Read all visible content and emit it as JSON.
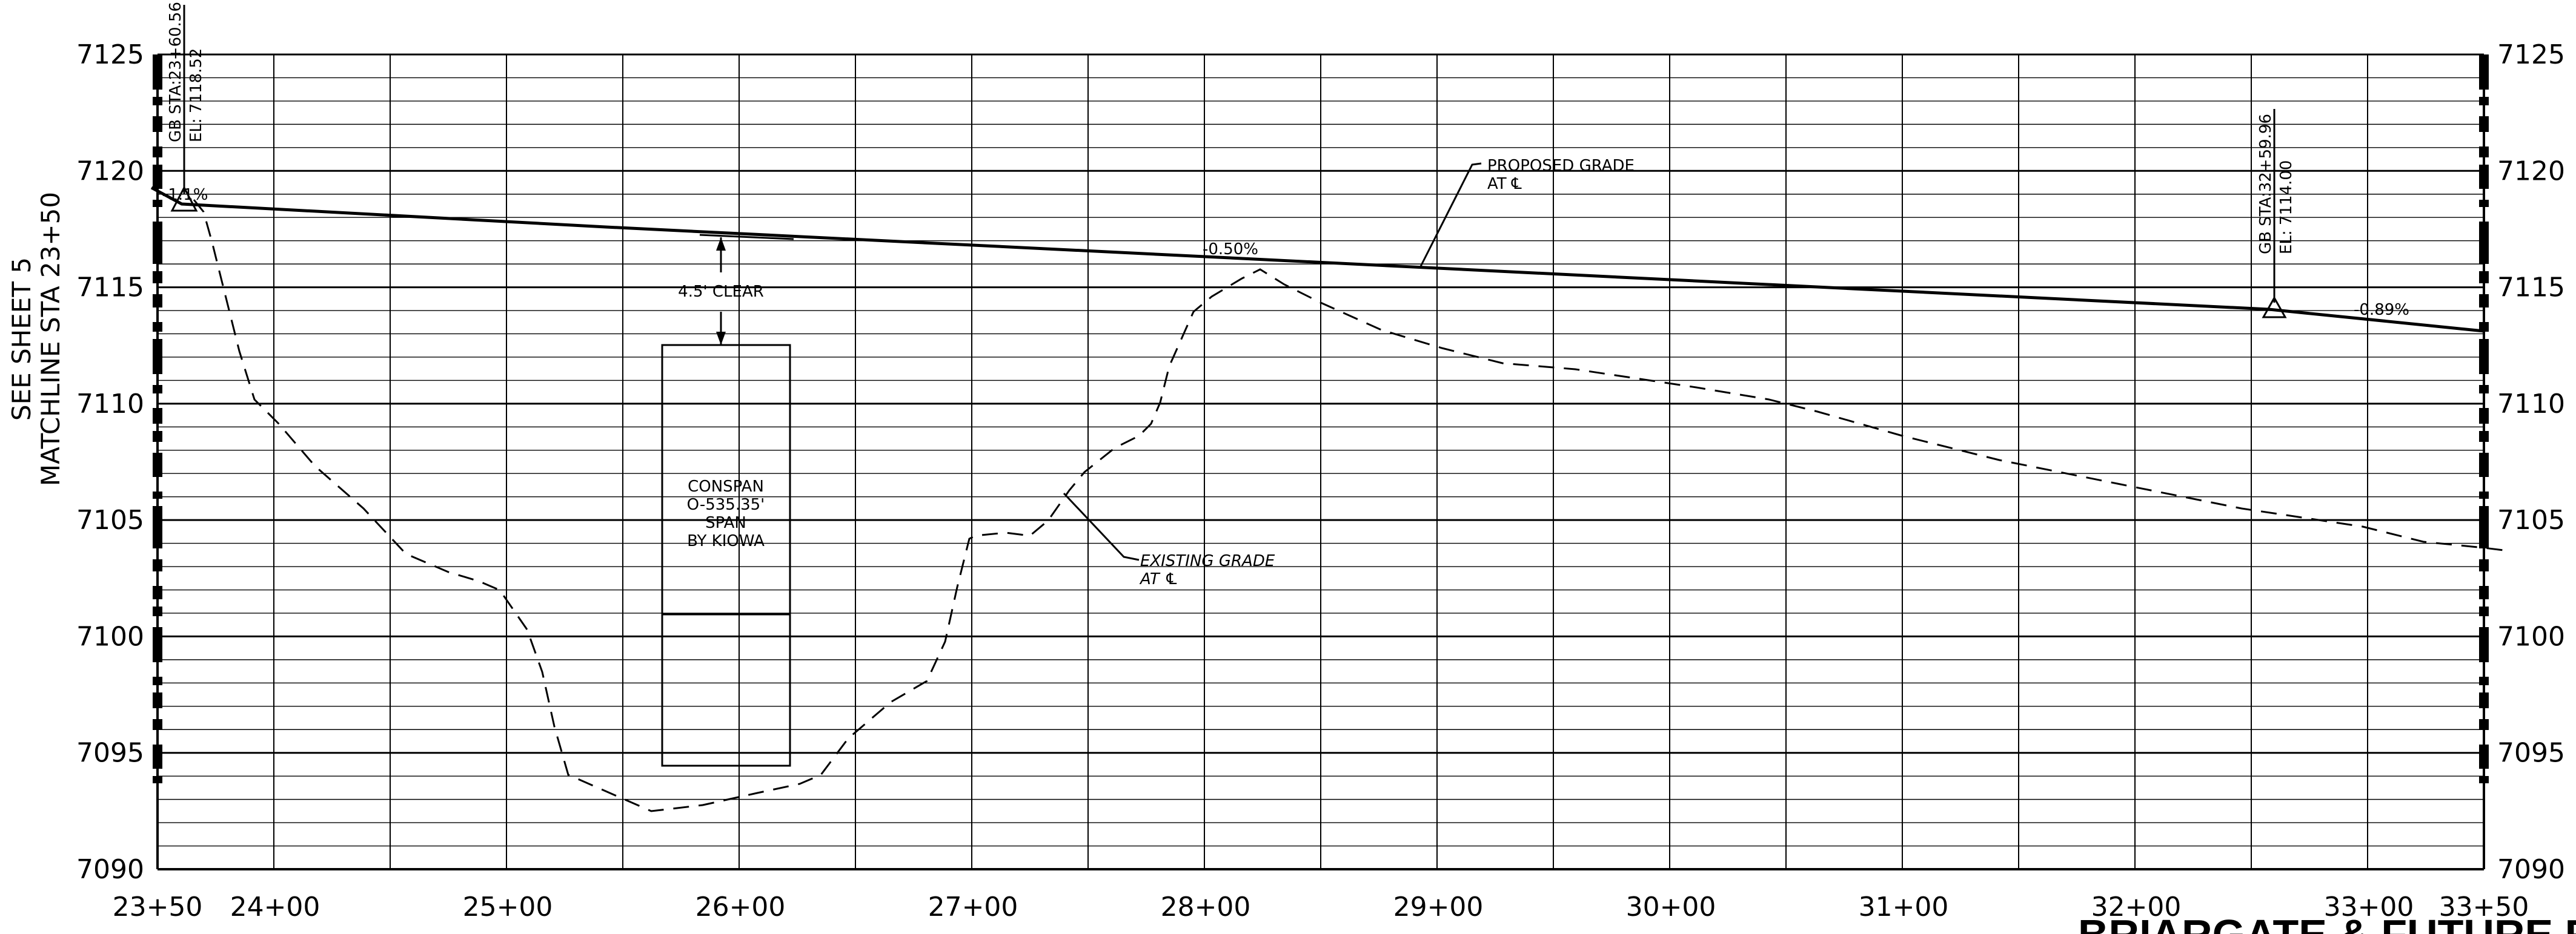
{
  "drawing": {
    "matchline_line1": "SEE SHEET 5",
    "matchline_line2": "MATCHLINE STA 23+50",
    "title_fragment": "BRIARGATE & FUTURE R"
  },
  "axes": {
    "x_ticks": [
      "23+50",
      "24+00",
      "25+00",
      "26+00",
      "27+00",
      "28+00",
      "29+00",
      "30+00",
      "31+00",
      "32+00",
      "33+00",
      "33+50"
    ],
    "y_ticks": [
      "7090",
      "7095",
      "7100",
      "7105",
      "7110",
      "7115",
      "7120",
      "7125"
    ]
  },
  "labels": {
    "gb_left_sta": "GB STA:23+60.56",
    "gb_left_el": "EL: 7118.52",
    "gb_right_sta": "GB STA:32+59.96",
    "gb_right_el": "EL: 7114.00",
    "grade_left": "-1.1%",
    "grade_mid": "-0.50%",
    "grade_right": "-0.89%",
    "proposed_line1": "PROPOSED GRADE",
    "proposed_line2": "AT ℄",
    "existing_line1": "EXISTING GRADE",
    "existing_line2": "AT ℄",
    "clearance": "4.5' CLEAR",
    "conspan_line1": "CONSPAN",
    "conspan_line2": "O-535.35'",
    "conspan_line3": "SPAN",
    "conspan_line4": "BY KIOWA"
  }
}
